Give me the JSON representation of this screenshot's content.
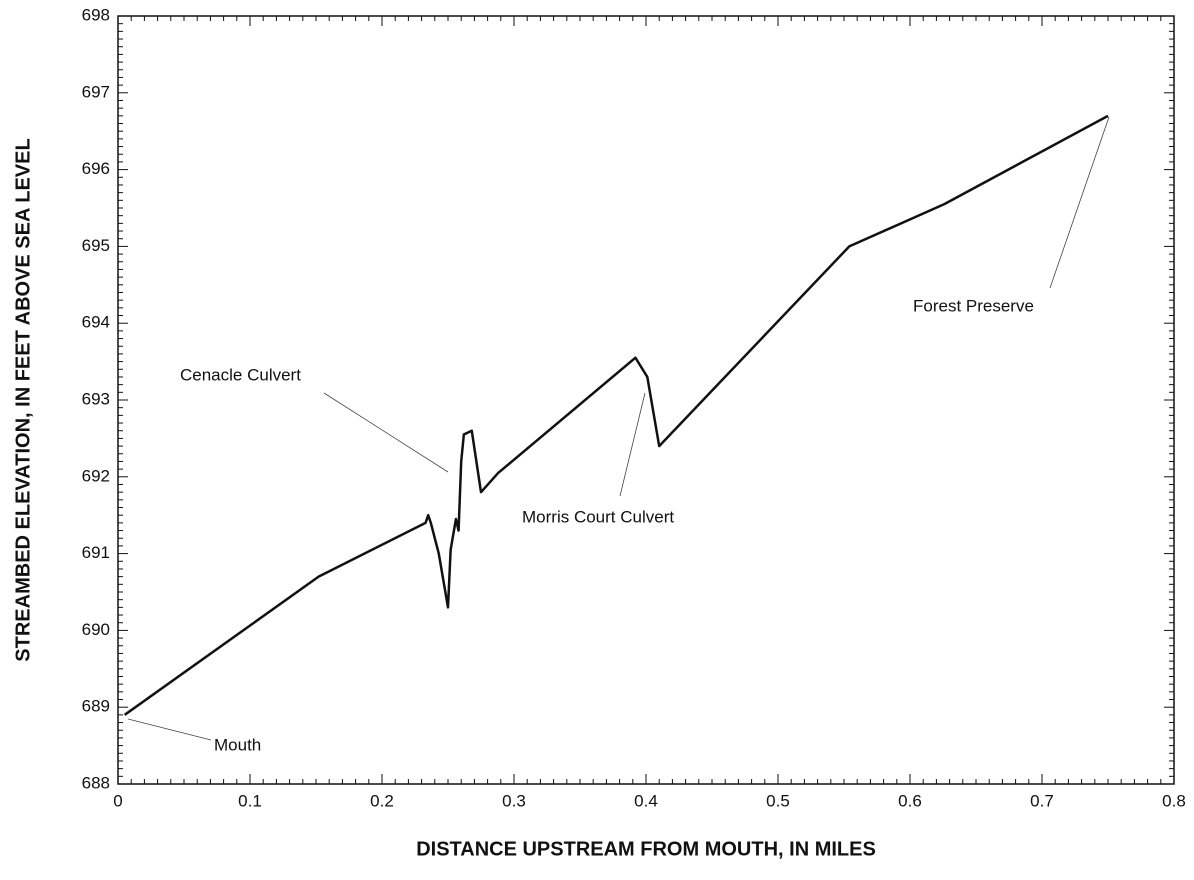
{
  "chart_data": {
    "type": "line",
    "xlabel": "DISTANCE  UPSTREAM  FROM  MOUTH,  IN  MILES",
    "ylabel": "STREAMBED  ELEVATION,  IN  FEET  ABOVE  SEA  LEVEL",
    "x": [
      0.005,
      0.152,
      0.233,
      0.235,
      0.237,
      0.243,
      0.25,
      0.252,
      0.256,
      0.258,
      0.26,
      0.262,
      0.268,
      0.275,
      0.288,
      0.392,
      0.401,
      0.41,
      0.554,
      0.626,
      0.75
    ],
    "series": [
      {
        "color": "#111111",
        "values": [
          688.9,
          690.7,
          691.4,
          691.5,
          691.4,
          691.0,
          690.3,
          691.05,
          691.45,
          691.3,
          692.2,
          692.55,
          692.6,
          691.8,
          692.05,
          693.55,
          693.3,
          692.4,
          695.0,
          695.55,
          696.7
        ]
      }
    ],
    "xlim": [
      0,
      0.8
    ],
    "xticks": [
      0,
      0.1,
      0.2,
      0.3,
      0.4,
      0.5,
      0.6,
      0.7,
      0.8
    ],
    "ylim": [
      688,
      698
    ],
    "yticks": [
      688,
      689,
      690,
      691,
      692,
      693,
      694,
      695,
      696,
      697,
      698
    ],
    "annotations": [
      "Mouth",
      "Cenacle  Culvert",
      "Morris  Court  Culvert",
      "Forest  Preserve"
    ]
  }
}
